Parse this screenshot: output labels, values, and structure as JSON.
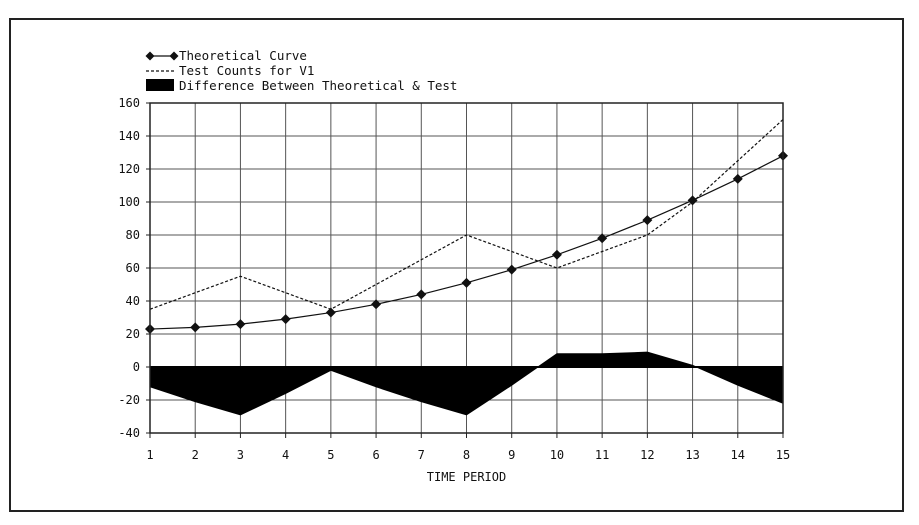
{
  "chart_data": {
    "type": "line",
    "x": [
      1,
      2,
      3,
      4,
      5,
      6,
      7,
      8,
      9,
      10,
      11,
      12,
      13,
      14,
      15
    ],
    "xlabel": "TIME PERIOD",
    "ylabel": "",
    "ylim": [
      -40,
      160
    ],
    "yticks": [
      160,
      140,
      120,
      100,
      80,
      60,
      40,
      20,
      0,
      -20,
      -40
    ],
    "grid": true,
    "legend_position": "top-left",
    "series": [
      {
        "name": "Theoretical Curve",
        "style": "solid line with diamond markers",
        "color": "#111111",
        "values": [
          23,
          24,
          26,
          29,
          33,
          38,
          44,
          51,
          59,
          68,
          78,
          89,
          101,
          114,
          128
        ]
      },
      {
        "name": "Test Counts for V1",
        "style": "dashed line",
        "color": "#111111",
        "values": [
          35,
          45,
          55,
          45,
          35,
          50,
          65,
          80,
          70,
          60,
          70,
          80,
          100,
          125,
          150
        ]
      },
      {
        "name": "Difference Between Theoretical & Test",
        "style": "filled area",
        "color": "#000000",
        "values": [
          -12,
          -21,
          -29,
          -16,
          -2,
          -12,
          -21,
          -29,
          -11,
          8,
          8,
          9,
          1,
          -11,
          -22
        ]
      }
    ]
  }
}
